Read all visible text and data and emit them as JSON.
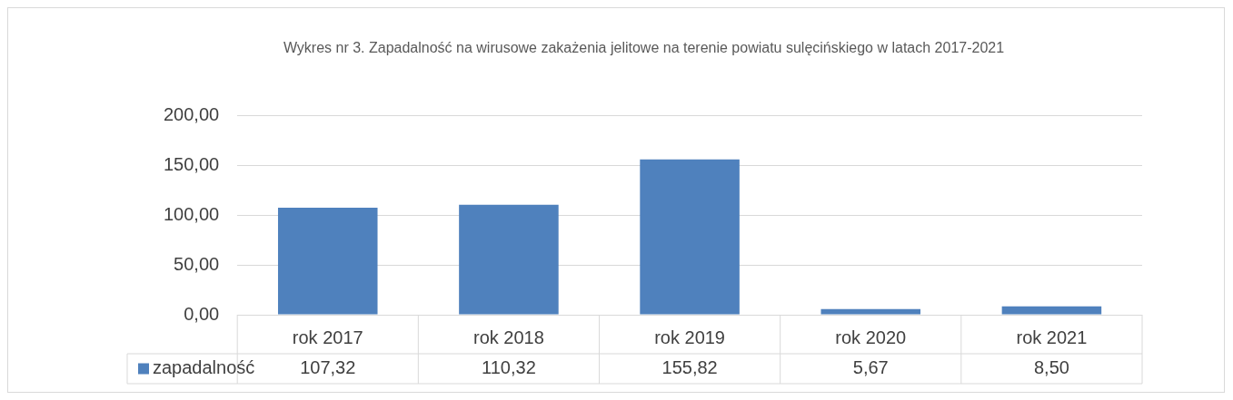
{
  "chart_data": {
    "type": "bar",
    "title": "Wykres nr 3. Zapadalność na wirusowe zakażenia jelitowe na terenie powiatu sulęcińskiego w latach 2017-2021",
    "categories": [
      "rok 2017",
      "rok 2018",
      "rok 2019",
      "rok 2020",
      "rok 2021"
    ],
    "series": [
      {
        "name": "zapadalność",
        "color": "#4f81bd",
        "values": [
          107.32,
          110.32,
          155.82,
          5.67,
          8.5
        ],
        "value_labels": [
          "107,32",
          "110,32",
          "155,82",
          "5,67",
          "8,50"
        ]
      }
    ],
    "ylim": [
      0,
      200
    ],
    "yticks": [
      {
        "value": 0,
        "label": "0,00"
      },
      {
        "value": 50,
        "label": "50,00"
      },
      {
        "value": 100,
        "label": "100,00"
      },
      {
        "value": 150,
        "label": "150,00"
      },
      {
        "value": 200,
        "label": "200,00"
      }
    ],
    "grid": "y",
    "legend": "bottom"
  }
}
